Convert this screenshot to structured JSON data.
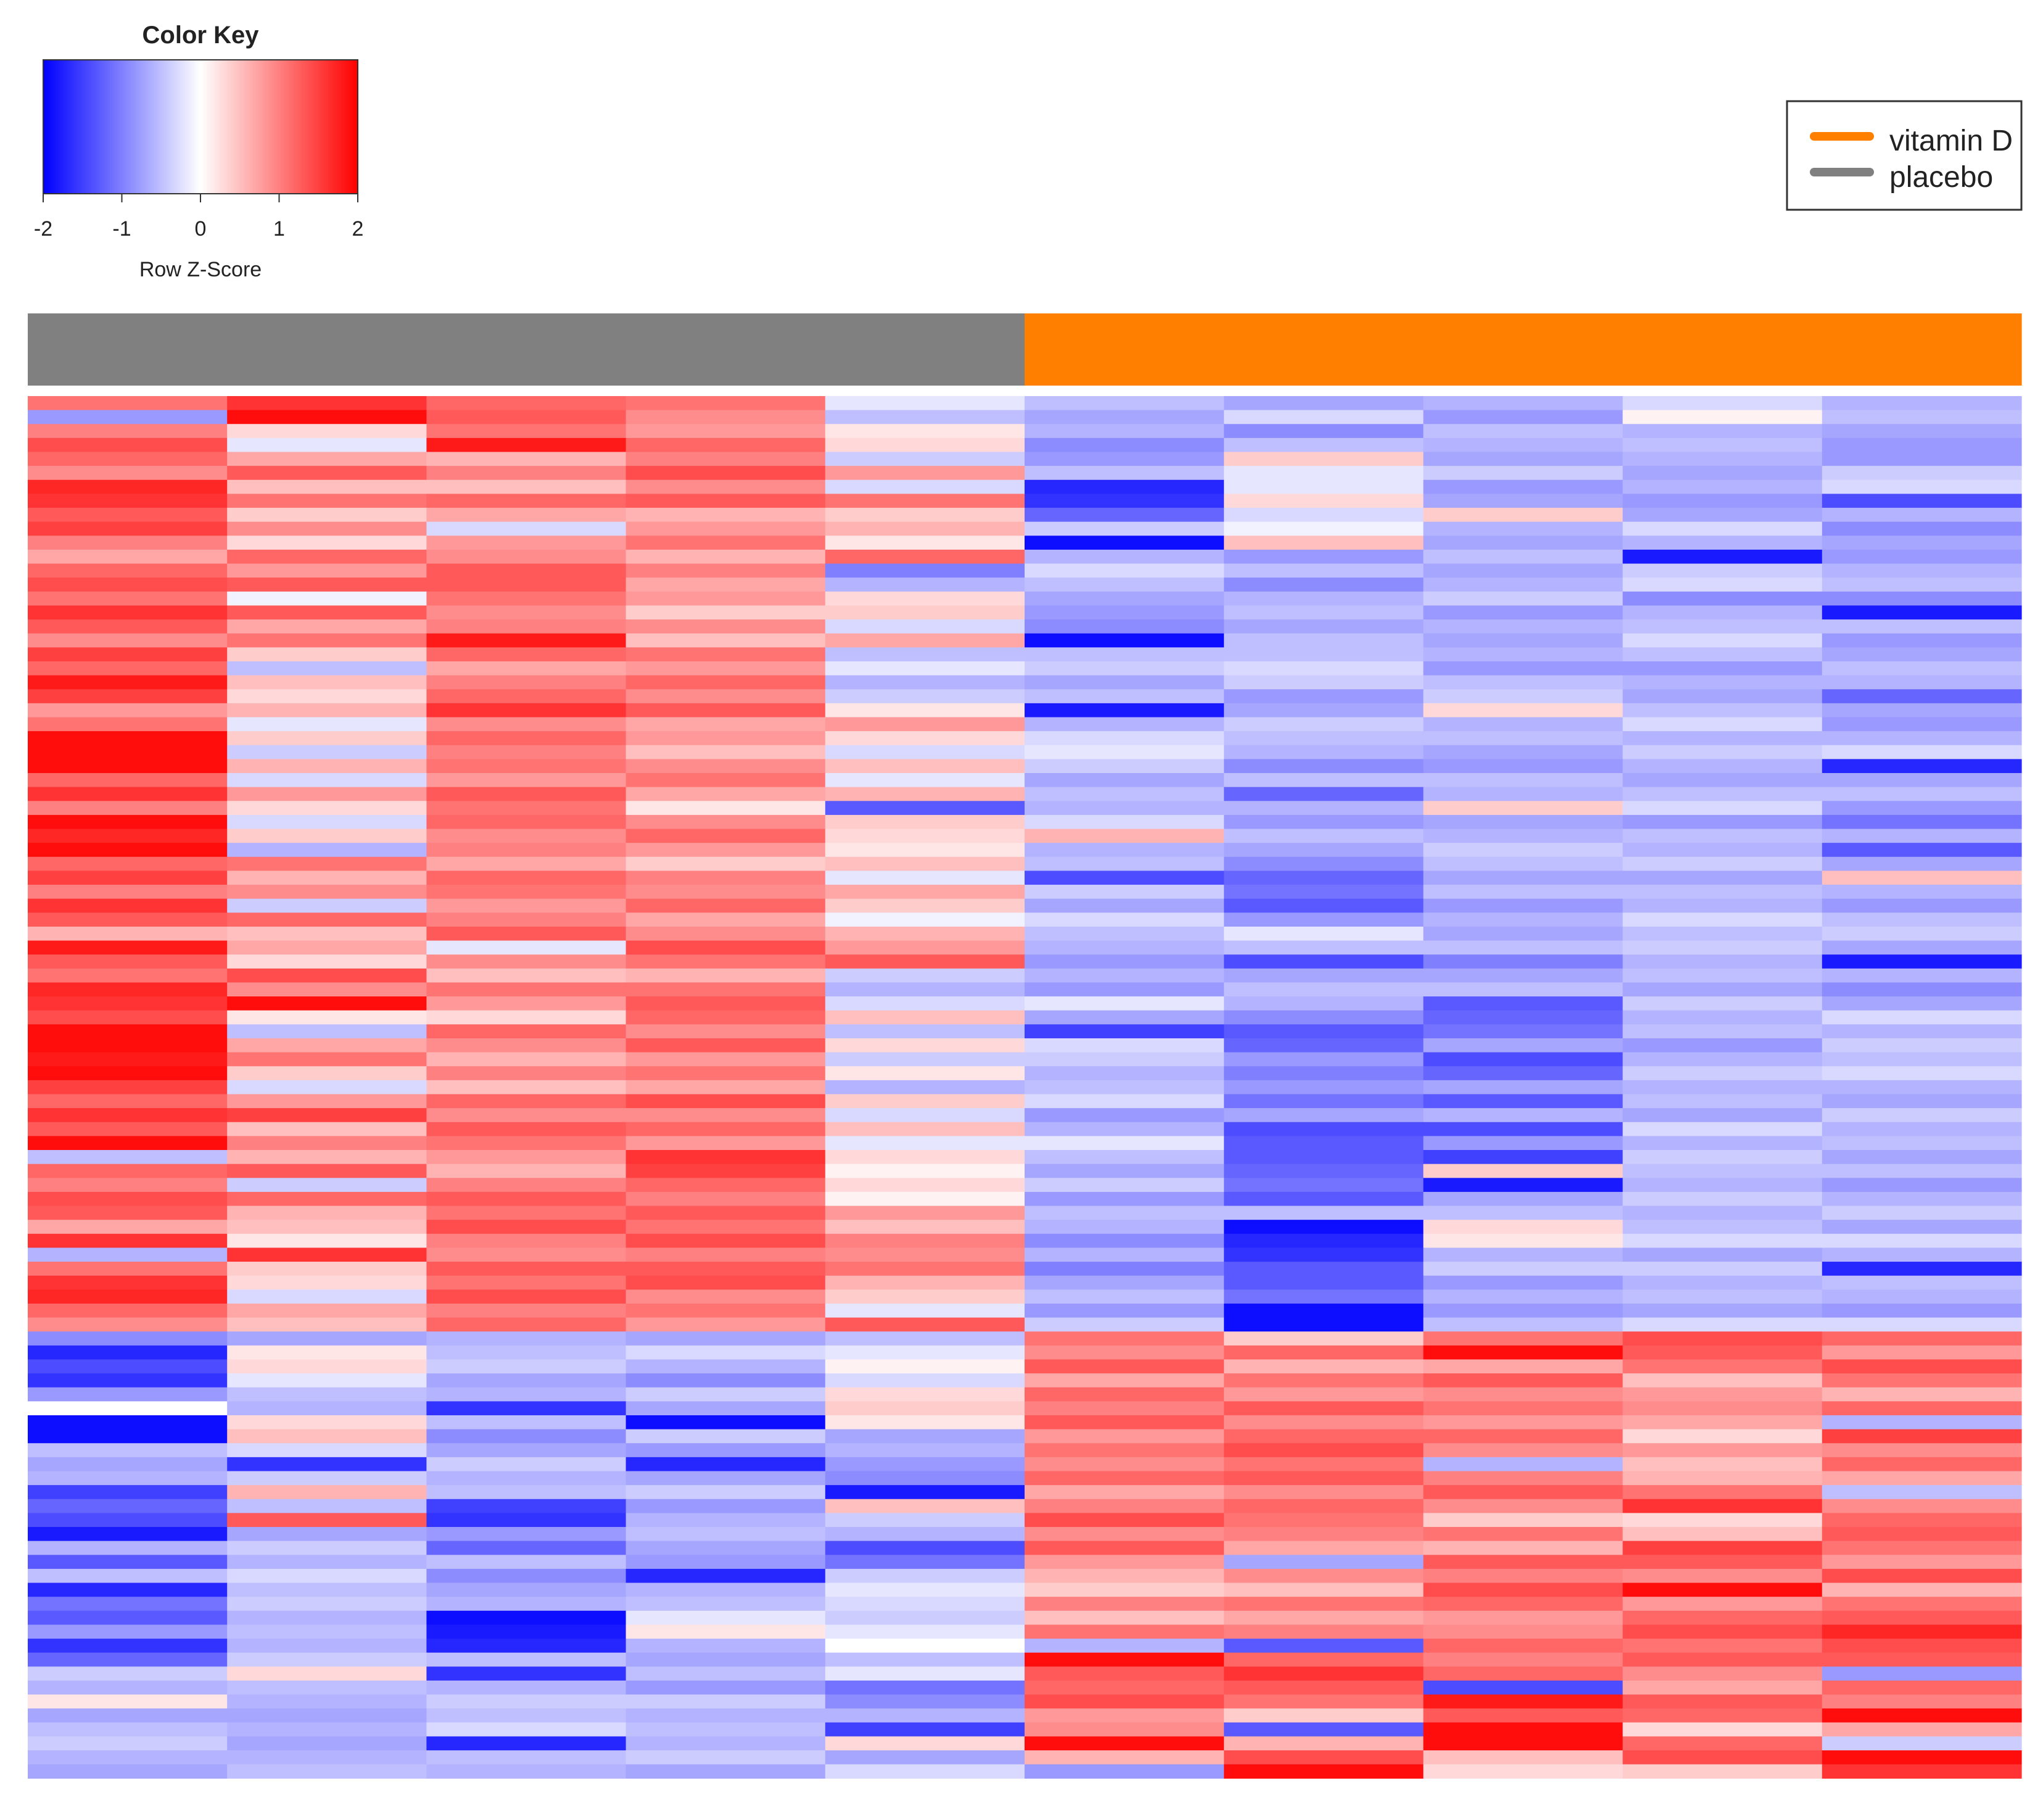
{
  "chart_data": {
    "type": "heatmap",
    "title": "",
    "xlabel": "",
    "ylabel": "",
    "color_key": {
      "title": "Color Key",
      "label": "Row Z-Score",
      "ticks": [
        "-2",
        "-1",
        "0",
        "1",
        "2"
      ],
      "range": [
        -2,
        2
      ],
      "low_color": "#0000ff",
      "mid_color": "#ffffff",
      "high_color": "#ff0000"
    },
    "legend": {
      "position": "top-right",
      "entries": [
        {
          "label": "vitamin D",
          "color": "#ff8000"
        },
        {
          "label": "placebo",
          "color": "#808080"
        }
      ]
    },
    "column_groups": [
      "placebo",
      "placebo",
      "placebo",
      "placebo",
      "placebo",
      "vitamin D",
      "vitamin D",
      "vitamin D",
      "vitamin D",
      "vitamin D"
    ],
    "group_colors": {
      "placebo": "#808080",
      "vitamin D": "#ff8000"
    },
    "n_rows": 100,
    "n_cols": 10,
    "values": [
      [
        1.1,
        1.6,
        1.2,
        1.1,
        -0.2,
        -0.5,
        -0.7,
        -0.6,
        -0.3,
        -0.6
      ],
      [
        -0.8,
        1.9,
        1.3,
        0.9,
        -0.5,
        -0.7,
        -0.3,
        -0.8,
        0.1,
        -0.5
      ],
      [
        1.0,
        0.3,
        1.1,
        0.8,
        0.2,
        -0.6,
        -0.9,
        -0.5,
        -0.6,
        -0.7
      ],
      [
        1.4,
        -0.2,
        1.8,
        1.2,
        0.3,
        -0.9,
        -0.5,
        -0.6,
        -0.5,
        -0.8
      ],
      [
        1.2,
        0.7,
        0.6,
        1.0,
        -0.4,
        -0.8,
        0.4,
        -0.7,
        -0.6,
        -0.8
      ],
      [
        0.9,
        1.3,
        1.0,
        1.4,
        0.8,
        -0.5,
        -0.2,
        -0.4,
        -0.7,
        -0.4
      ],
      [
        1.7,
        0.5,
        0.5,
        0.9,
        -0.3,
        -1.7,
        -0.2,
        -0.8,
        -0.6,
        -0.3
      ],
      [
        1.6,
        1.1,
        1.2,
        1.3,
        1.1,
        -1.6,
        0.3,
        -0.7,
        -0.8,
        -1.4
      ],
      [
        1.3,
        0.4,
        0.7,
        0.6,
        0.4,
        -1.2,
        -0.3,
        0.4,
        -0.7,
        -0.6
      ],
      [
        1.5,
        0.9,
        -0.3,
        0.8,
        0.6,
        -0.4,
        -0.1,
        -0.6,
        -0.3,
        -0.9
      ],
      [
        1.0,
        0.3,
        0.8,
        1.1,
        0.2,
        -1.9,
        0.5,
        -0.7,
        -0.6,
        -0.7
      ],
      [
        0.7,
        1.2,
        0.9,
        0.6,
        1.2,
        -0.6,
        -0.8,
        -0.5,
        -1.8,
        -0.8
      ],
      [
        1.2,
        0.8,
        1.3,
        1.0,
        -1.0,
        -0.3,
        -0.5,
        -0.7,
        -0.4,
        -0.6
      ],
      [
        1.4,
        1.3,
        1.3,
        0.7,
        -0.6,
        -0.5,
        -0.9,
        -0.6,
        -0.3,
        -0.5
      ],
      [
        1.1,
        -0.1,
        1.1,
        0.8,
        0.3,
        -0.7,
        -0.6,
        -0.4,
        -0.9,
        -0.9
      ],
      [
        1.6,
        1.3,
        0.9,
        0.4,
        0.4,
        -0.8,
        -0.5,
        -0.8,
        -0.6,
        -1.8
      ],
      [
        1.3,
        0.7,
        1.0,
        0.9,
        -0.3,
        -0.9,
        -0.7,
        -0.6,
        -0.5,
        -0.5
      ],
      [
        0.9,
        1.1,
        1.8,
        0.5,
        0.7,
        -1.9,
        -0.5,
        -0.7,
        -0.3,
        -0.8
      ],
      [
        1.5,
        0.4,
        1.2,
        1.1,
        -0.5,
        -0.5,
        -0.5,
        -0.6,
        -0.5,
        -0.7
      ],
      [
        1.2,
        -0.5,
        0.7,
        0.8,
        -0.2,
        -0.4,
        -0.3,
        -0.8,
        -0.8,
        -0.5
      ],
      [
        1.8,
        0.5,
        1.0,
        1.2,
        -0.6,
        -0.7,
        -0.4,
        -0.5,
        -0.6,
        -0.6
      ],
      [
        1.5,
        0.3,
        1.2,
        0.9,
        -0.4,
        -0.5,
        -0.8,
        -0.4,
        -0.7,
        -1.2
      ],
      [
        0.8,
        0.6,
        1.6,
        1.3,
        0.2,
        -1.8,
        -0.7,
        0.3,
        -0.5,
        -0.7
      ],
      [
        1.1,
        -0.2,
        0.9,
        0.7,
        0.8,
        -0.6,
        -0.4,
        -0.6,
        -0.3,
        -0.8
      ],
      [
        1.9,
        0.4,
        1.2,
        0.8,
        0.3,
        -0.3,
        -0.5,
        -0.5,
        -0.6,
        -0.6
      ],
      [
        1.9,
        -0.4,
        1.0,
        0.5,
        -0.3,
        -0.2,
        -0.6,
        -0.7,
        -0.4,
        -0.3
      ],
      [
        1.9,
        0.6,
        1.1,
        0.9,
        0.5,
        -0.4,
        -0.9,
        -0.8,
        -0.6,
        -1.7
      ],
      [
        1.2,
        -0.3,
        0.8,
        1.1,
        -0.2,
        -0.7,
        -0.5,
        -0.5,
        -0.7,
        -0.7
      ],
      [
        1.6,
        0.8,
        1.3,
        0.7,
        0.6,
        -0.5,
        -1.2,
        -0.6,
        -0.5,
        -0.5
      ],
      [
        1.0,
        0.3,
        1.1,
        0.2,
        -1.3,
        -0.6,
        -0.6,
        0.4,
        -0.3,
        -0.8
      ],
      [
        1.9,
        -0.3,
        1.2,
        0.9,
        0.4,
        -0.3,
        -0.8,
        -0.7,
        -0.8,
        -1.1
      ],
      [
        1.7,
        0.4,
        0.9,
        1.2,
        0.3,
        0.6,
        -0.5,
        -0.6,
        -0.5,
        -0.6
      ],
      [
        1.9,
        -0.6,
        1.0,
        0.8,
        0.2,
        -0.6,
        -0.7,
        -0.4,
        -0.6,
        -1.3
      ],
      [
        1.2,
        1.1,
        0.7,
        0.4,
        0.5,
        -0.5,
        -0.9,
        -0.5,
        -0.4,
        -0.7
      ],
      [
        1.5,
        0.6,
        1.2,
        1.0,
        -0.2,
        -1.4,
        -1.2,
        -0.7,
        -0.7,
        0.5
      ],
      [
        1.0,
        0.9,
        1.1,
        0.9,
        0.7,
        -0.4,
        -1.1,
        -0.5,
        -0.5,
        -0.6
      ],
      [
        1.6,
        -0.4,
        0.8,
        1.2,
        0.4,
        -0.7,
        -1.3,
        -0.8,
        -0.6,
        -0.8
      ],
      [
        1.3,
        1.2,
        1.0,
        0.7,
        -0.1,
        -0.3,
        -0.8,
        -0.6,
        -0.3,
        -0.5
      ],
      [
        0.6,
        0.5,
        1.3,
        0.9,
        0.6,
        -0.5,
        -0.2,
        -0.7,
        -0.5,
        -0.4
      ],
      [
        1.8,
        0.7,
        -0.2,
        1.4,
        0.8,
        -0.6,
        -0.5,
        -0.5,
        -0.4,
        -0.7
      ],
      [
        1.3,
        0.3,
        0.9,
        1.1,
        1.3,
        -0.8,
        -1.4,
        -1.0,
        -0.6,
        -1.8
      ],
      [
        1.1,
        1.4,
        0.5,
        0.6,
        -0.4,
        -0.6,
        -0.7,
        -0.7,
        -0.5,
        -0.6
      ],
      [
        1.7,
        0.9,
        1.1,
        1.1,
        -0.6,
        -0.8,
        -0.5,
        -0.5,
        -0.7,
        -0.9
      ],
      [
        1.6,
        1.9,
        0.8,
        1.3,
        -0.3,
        -0.2,
        -0.6,
        -1.3,
        -0.4,
        -0.7
      ],
      [
        1.4,
        0.2,
        0.3,
        1.2,
        0.5,
        -0.7,
        -0.9,
        -1.2,
        -0.6,
        -0.3
      ],
      [
        1.9,
        -0.5,
        1.2,
        0.9,
        -0.5,
        -1.5,
        -1.3,
        -1.1,
        -0.5,
        -0.6
      ],
      [
        1.9,
        0.7,
        0.9,
        1.3,
        0.3,
        -0.3,
        -1.2,
        -0.7,
        -0.8,
        -0.4
      ],
      [
        1.8,
        1.1,
        0.6,
        0.8,
        -0.4,
        -0.4,
        -0.8,
        -1.4,
        -0.6,
        -0.5
      ],
      [
        1.9,
        0.4,
        1.0,
        1.1,
        0.2,
        -0.6,
        -1.0,
        -1.2,
        -0.4,
        -0.3
      ],
      [
        1.5,
        -0.3,
        0.5,
        0.7,
        -0.6,
        -0.5,
        -0.8,
        -0.7,
        -0.6,
        -0.6
      ],
      [
        1.2,
        0.8,
        1.2,
        1.4,
        0.4,
        -0.3,
        -1.1,
        -1.3,
        -0.5,
        -0.7
      ],
      [
        1.6,
        1.5,
        0.9,
        0.9,
        -0.3,
        -0.8,
        -0.7,
        -0.6,
        -0.7,
        -0.4
      ],
      [
        1.3,
        0.5,
        1.3,
        1.2,
        0.5,
        -0.6,
        -1.4,
        -1.4,
        -0.3,
        -0.6
      ],
      [
        1.9,
        1.0,
        1.1,
        0.8,
        -0.2,
        -0.2,
        -1.3,
        -0.8,
        -0.6,
        -0.5
      ],
      [
        -0.5,
        0.6,
        0.8,
        1.6,
        0.3,
        -0.5,
        -1.3,
        -1.5,
        -0.4,
        -0.7
      ],
      [
        1.2,
        1.3,
        0.6,
        1.5,
        0.1,
        -0.7,
        -1.2,
        0.4,
        -0.5,
        -0.5
      ],
      [
        1.0,
        -0.4,
        1.0,
        1.2,
        0.3,
        -0.4,
        -1.1,
        -1.8,
        -0.6,
        -0.8
      ],
      [
        1.4,
        1.2,
        1.3,
        1.0,
        0.1,
        -0.8,
        -1.3,
        -0.7,
        -0.4,
        -0.6
      ],
      [
        1.3,
        0.6,
        1.1,
        1.3,
        0.8,
        -0.5,
        -0.5,
        -0.5,
        -0.6,
        -0.4
      ],
      [
        0.7,
        0.5,
        1.4,
        1.1,
        0.5,
        -0.6,
        -1.9,
        0.3,
        -0.5,
        -0.7
      ],
      [
        1.6,
        0.2,
        1.0,
        1.4,
        1.0,
        -0.9,
        -1.7,
        0.2,
        -0.3,
        -0.3
      ],
      [
        -0.6,
        1.6,
        0.9,
        1.0,
        0.9,
        -0.6,
        -1.6,
        -0.6,
        -0.7,
        -0.6
      ],
      [
        1.1,
        0.4,
        1.3,
        1.3,
        1.1,
        -1.0,
        -1.3,
        -0.4,
        -0.4,
        -1.7
      ],
      [
        1.6,
        0.3,
        1.1,
        1.4,
        0.6,
        -0.7,
        -1.3,
        -0.8,
        -0.6,
        -0.5
      ],
      [
        1.7,
        -0.3,
        1.4,
        0.9,
        0.4,
        -0.5,
        -1.1,
        -0.6,
        -0.5,
        -0.6
      ],
      [
        1.2,
        0.7,
        1.0,
        1.1,
        -0.2,
        -0.8,
        -1.9,
        -0.8,
        -0.7,
        -0.8
      ],
      [
        0.9,
        0.5,
        1.2,
        0.8,
        1.3,
        -0.4,
        -1.9,
        -0.5,
        -0.3,
        -0.3
      ],
      [
        -0.9,
        -0.7,
        -0.6,
        -0.7,
        -0.5,
        1.1,
        0.4,
        1.1,
        1.4,
        1.2
      ],
      [
        -1.7,
        0.2,
        -0.5,
        -0.3,
        -0.2,
        0.9,
        1.2,
        1.9,
        1.3,
        0.8
      ],
      [
        -1.4,
        0.3,
        -0.4,
        -0.6,
        0.1,
        1.3,
        0.6,
        0.7,
        1.1,
        1.4
      ],
      [
        -1.6,
        -0.2,
        -0.7,
        -0.9,
        -0.3,
        0.7,
        1.1,
        1.3,
        0.5,
        1.1
      ],
      [
        -0.8,
        -0.5,
        -0.6,
        -0.4,
        0.3,
        1.2,
        0.8,
        0.9,
        0.8,
        0.6
      ],
      [
        0.0,
        -0.6,
        -1.6,
        -0.7,
        0.4,
        1.0,
        1.3,
        1.1,
        0.9,
        1.2
      ],
      [
        -1.9,
        0.3,
        -0.5,
        -1.9,
        0.2,
        1.3,
        0.9,
        0.8,
        0.7,
        -0.6
      ],
      [
        -1.9,
        0.5,
        -0.9,
        -0.4,
        -0.7,
        0.8,
        1.2,
        1.2,
        0.3,
        1.5
      ],
      [
        -0.5,
        -0.3,
        -0.7,
        -0.8,
        -0.6,
        1.1,
        1.4,
        0.9,
        0.8,
        0.9
      ],
      [
        -0.7,
        -1.6,
        -0.4,
        -1.7,
        -0.8,
        0.9,
        1.1,
        -0.6,
        0.5,
        1.2
      ],
      [
        -0.6,
        -0.4,
        -0.6,
        -0.7,
        -0.9,
        1.2,
        1.3,
        1.0,
        0.6,
        0.7
      ],
      [
        -1.5,
        0.6,
        -0.5,
        -0.4,
        -1.8,
        0.7,
        0.9,
        1.3,
        1.1,
        -0.5
      ],
      [
        -1.2,
        -0.5,
        -1.5,
        -0.8,
        0.5,
        1.0,
        1.2,
        0.9,
        1.6,
        0.9
      ],
      [
        -1.4,
        1.3,
        -1.6,
        -0.6,
        -0.4,
        1.4,
        1.1,
        0.4,
        0.3,
        1.2
      ],
      [
        -1.8,
        -0.7,
        -0.8,
        -0.5,
        -0.6,
        0.9,
        1.0,
        1.1,
        0.5,
        1.3
      ],
      [
        -0.6,
        -0.4,
        -1.2,
        -0.7,
        -1.4,
        1.3,
        0.7,
        0.6,
        1.5,
        1.1
      ],
      [
        -1.3,
        -0.6,
        -0.5,
        -0.8,
        -1.1,
        0.8,
        -0.7,
        1.3,
        1.3,
        0.8
      ],
      [
        -0.5,
        -0.3,
        -0.9,
        -1.7,
        -0.4,
        0.6,
        0.9,
        1.0,
        0.9,
        1.4
      ],
      [
        -1.7,
        -0.5,
        -0.7,
        -0.6,
        -0.2,
        0.4,
        0.5,
        1.4,
        1.9,
        0.6
      ],
      [
        -1.1,
        -0.4,
        -0.6,
        -0.5,
        -0.3,
        1.0,
        1.1,
        1.2,
        0.8,
        1.1
      ],
      [
        -1.3,
        -0.6,
        -1.9,
        -0.2,
        -0.4,
        0.5,
        0.7,
        0.8,
        1.2,
        1.3
      ],
      [
        -0.8,
        -0.5,
        -1.8,
        0.2,
        -0.2,
        1.1,
        1.0,
        0.9,
        1.4,
        1.7
      ],
      [
        -1.6,
        -0.6,
        -1.7,
        -0.6,
        0.0,
        -0.6,
        -1.3,
        1.2,
        1.1,
        1.4
      ],
      [
        -1.2,
        -0.4,
        -0.5,
        -0.7,
        -0.5,
        1.9,
        1.2,
        1.0,
        1.3,
        1.3
      ],
      [
        -0.4,
        0.3,
        -1.6,
        -0.5,
        -0.2,
        1.3,
        1.6,
        1.2,
        0.9,
        -0.8
      ],
      [
        -0.6,
        -0.5,
        -0.6,
        -0.8,
        -1.1,
        1.2,
        1.3,
        -1.4,
        0.7,
        1.2
      ],
      [
        0.2,
        -0.6,
        -0.4,
        -0.4,
        -0.9,
        1.4,
        1.1,
        1.8,
        1.3,
        1.0
      ],
      [
        -0.7,
        -0.7,
        -0.5,
        -0.6,
        -0.6,
        0.8,
        0.4,
        1.3,
        1.2,
        1.9
      ],
      [
        -0.5,
        -0.6,
        -0.3,
        -0.5,
        -1.5,
        0.9,
        -1.3,
        1.9,
        0.3,
        0.7
      ],
      [
        -0.4,
        -0.7,
        -1.7,
        -0.6,
        0.3,
        1.9,
        0.6,
        1.9,
        1.2,
        -0.4
      ],
      [
        -0.6,
        -0.6,
        -0.5,
        -0.4,
        -0.7,
        0.6,
        1.4,
        0.5,
        1.4,
        1.9
      ],
      [
        -0.7,
        -0.5,
        -0.6,
        -0.7,
        -0.3,
        -0.8,
        1.9,
        0.3,
        0.4,
        1.6
      ]
    ]
  }
}
